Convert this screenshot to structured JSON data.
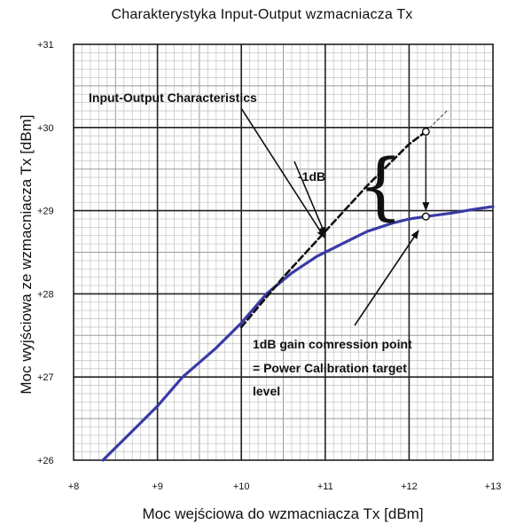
{
  "chart_data": {
    "type": "line",
    "title": "Charakterystyka Input-Output wzmacniacza Tx",
    "xlabel": "Moc wejściowa do wzmacniacza Tx [dBm]",
    "ylabel": "Moc wyjściowa ze wzmacniacza Tx [dBm]",
    "xlim": [
      8,
      13
    ],
    "ylim": [
      26,
      31
    ],
    "x_ticks": [
      "+8",
      "+9",
      "+10",
      "+11",
      "+12",
      "+13"
    ],
    "y_ticks": [
      "+26",
      "+27",
      "+28",
      "+29",
      "+30",
      "+31"
    ],
    "grid": true,
    "series": [
      {
        "style": "solid",
        "color": "#3a3aa6",
        "x": [
          8.35,
          8.7,
          9.0,
          9.3,
          9.7,
          10.0,
          10.3,
          10.6,
          10.9,
          11.2,
          11.5,
          11.8,
          12.0,
          12.2,
          12.5,
          12.8,
          13.0
        ],
        "y": [
          26.0,
          26.35,
          26.65,
          27.0,
          27.35,
          27.65,
          28.0,
          28.25,
          28.45,
          28.6,
          28.75,
          28.85,
          28.9,
          28.93,
          28.97,
          29.02,
          29.05
        ]
      },
      {
        "style": "dashed",
        "color": "#111111",
        "x": [
          10.0,
          10.5,
          11.0,
          11.5,
          12.0,
          12.2
        ],
        "y": [
          27.6,
          28.2,
          28.75,
          29.3,
          29.8,
          29.95
        ]
      },
      {
        "style": "dotted",
        "color": "#555555",
        "x": [
          12.2,
          12.45
        ],
        "y": [
          29.95,
          30.2
        ]
      }
    ],
    "markers": [
      {
        "x": 12.2,
        "y": 29.95
      },
      {
        "x": 12.2,
        "y": 28.93
      }
    ],
    "annotations": {
      "io_label": "Input-Output Characteristics",
      "minus_1db": "-1dB",
      "brace": "{",
      "gain_line1": "1dB gain comression point",
      "gain_line2": "= Power Calibration target",
      "gain_line3": "level"
    }
  }
}
